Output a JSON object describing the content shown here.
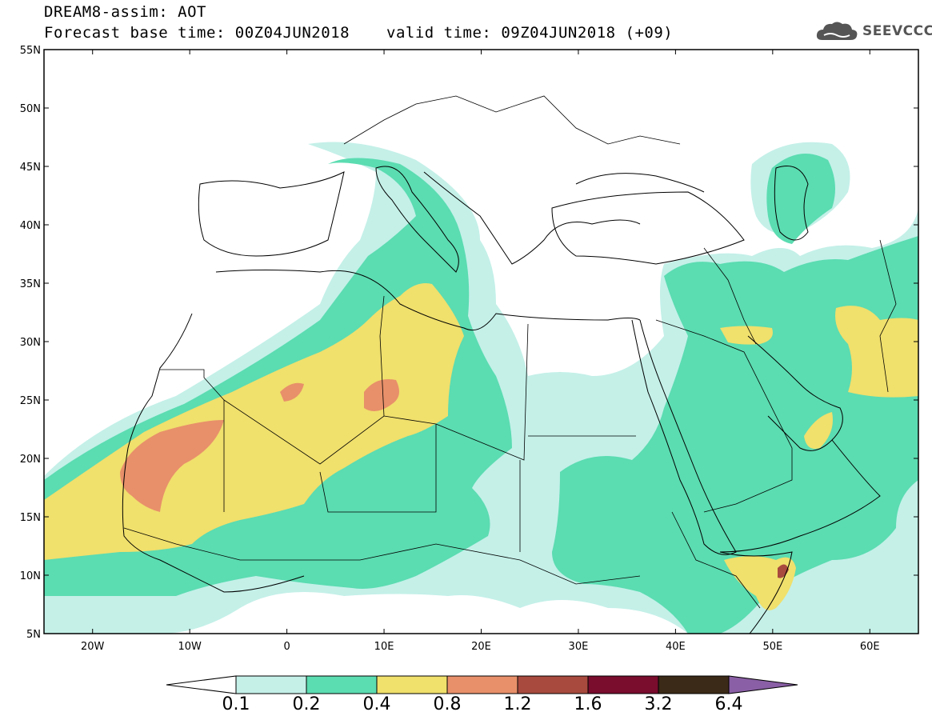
{
  "header": {
    "model_line": "DREAM8-assim: AOT",
    "base_time": "Forecast base time: 00Z04JUN2018",
    "valid_time": "valid time: 09Z04JUN2018 (+09)"
  },
  "logo": {
    "icon": "cloud-icon",
    "text": "SEEVCCC"
  },
  "axes": {
    "lat_ticks": [
      "55N",
      "50N",
      "45N",
      "40N",
      "35N",
      "30N",
      "25N",
      "20N",
      "15N",
      "10N",
      "5N"
    ],
    "lon_ticks": [
      "20W",
      "10W",
      "0",
      "10E",
      "20E",
      "30E",
      "40E",
      "50E",
      "60E"
    ],
    "lat_range": [
      5,
      55
    ],
    "lon_range": [
      -25,
      65
    ]
  },
  "colorbar": {
    "labels": [
      "0.1",
      "0.2",
      "0.4",
      "0.8",
      "1.2",
      "1.6",
      "3.2",
      "6.4"
    ],
    "colors": [
      "#c4f0e8",
      "#5bdcb1",
      "#f0e06c",
      "#e8906a",
      "#a84a3e",
      "#7a0c2e",
      "#3b2a17"
    ],
    "under_color": "#ffffff",
    "over_color": "#8a5fa5"
  },
  "chart_data": {
    "type": "heatmap",
    "variable": "AOT",
    "levels": [
      0.1,
      0.2,
      0.4,
      0.8,
      1.2,
      1.6,
      3.2,
      6.4
    ],
    "regions": [
      {
        "lon": -6,
        "lat": 18,
        "aot": 0.6
      },
      {
        "lon": -12,
        "lat": 20,
        "aot": 1.0
      },
      {
        "lon": 10,
        "lat": 26,
        "aot": 1.0
      },
      {
        "lon": 0,
        "lat": 26,
        "aot": 1.0
      },
      {
        "lon": 60,
        "lat": 28,
        "aot": 0.6
      },
      {
        "lon": 51,
        "lat": 10,
        "aot": 1.2
      }
    ]
  }
}
